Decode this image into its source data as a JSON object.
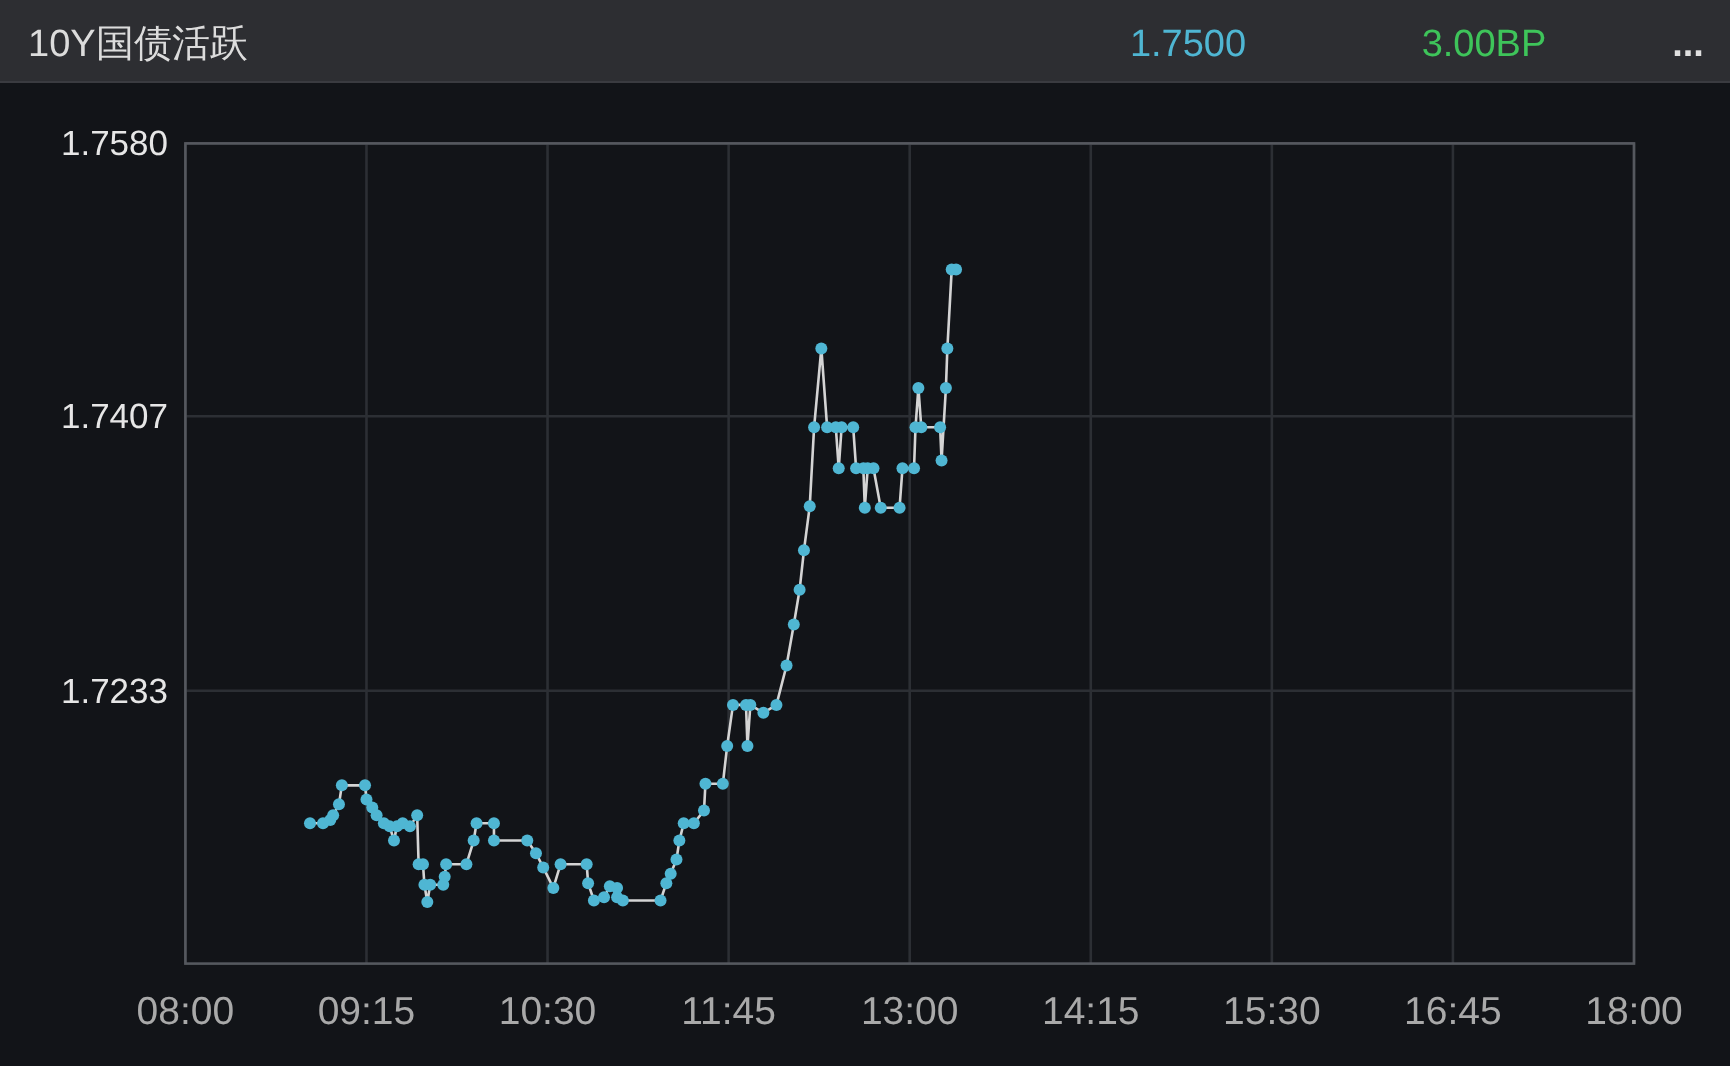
{
  "chart_data": {
    "type": "line",
    "title": "10Y国债活跃",
    "annotations": [
      "1.7500",
      "3.00BP",
      "..."
    ],
    "x": [
      8.86,
      8.95,
      9.0,
      9.02,
      9.06,
      9.08,
      9.24,
      9.25,
      9.29,
      9.32,
      9.37,
      9.41,
      9.44,
      9.46,
      9.5,
      9.55,
      9.6,
      9.61,
      9.64,
      9.65,
      9.67,
      9.69,
      9.78,
      9.79,
      9.8,
      9.94,
      9.99,
      10.01,
      10.13,
      10.13,
      10.36,
      10.42,
      10.47,
      10.54,
      10.59,
      10.77,
      10.78,
      10.82,
      10.89,
      10.93,
      10.98,
      10.98,
      11.02,
      11.28,
      11.32,
      11.35,
      11.39,
      11.41,
      11.44,
      11.51,
      11.58,
      11.59,
      11.71,
      11.74,
      11.78,
      11.87,
      11.88,
      11.9,
      11.99,
      12.08,
      12.15,
      12.2,
      12.24,
      12.27,
      12.31,
      12.34,
      12.39,
      12.43,
      12.49,
      12.51,
      12.53,
      12.61,
      12.63,
      12.68,
      12.69,
      12.71,
      12.75,
      12.8,
      12.93,
      12.95,
      13.03,
      13.04,
      13.06,
      13.08,
      13.21,
      13.22,
      13.25,
      13.26,
      13.29,
      13.32
    ],
    "series": [
      {
        "color": "#4fb6d3",
        "values": [
          1.7149,
          1.7149,
          1.7151,
          1.7154,
          1.7161,
          1.7173,
          1.7173,
          1.7164,
          1.7159,
          1.7154,
          1.7149,
          1.7147,
          1.7138,
          1.7147,
          1.7149,
          1.7147,
          1.7154,
          1.7123,
          1.7123,
          1.711,
          1.7099,
          1.711,
          1.711,
          1.7115,
          1.7123,
          1.7123,
          1.7138,
          1.7149,
          1.7149,
          1.7138,
          1.7138,
          1.713,
          1.7121,
          1.7108,
          1.7123,
          1.7123,
          1.7111,
          1.71,
          1.7102,
          1.7109,
          1.7108,
          1.7102,
          1.71,
          1.71,
          1.7111,
          1.7117,
          1.7126,
          1.7138,
          1.7149,
          1.7149,
          1.7157,
          1.7174,
          1.7174,
          1.7198,
          1.7224,
          1.7224,
          1.7198,
          1.7224,
          1.7219,
          1.7224,
          1.7249,
          1.7275,
          1.7297,
          1.7322,
          1.735,
          1.74,
          1.745,
          1.74,
          1.74,
          1.7374,
          1.74,
          1.74,
          1.7374,
          1.7374,
          1.7349,
          1.7374,
          1.7374,
          1.7349,
          1.7349,
          1.7374,
          1.7374,
          1.74,
          1.7425,
          1.74,
          1.74,
          1.7379,
          1.7425,
          1.745,
          1.75,
          1.75
        ]
      }
    ],
    "xlim": [
      8,
      18
    ],
    "xticks": [
      {
        "value": 8,
        "label": "08:00"
      },
      {
        "value": 9.25,
        "label": "09:15"
      },
      {
        "value": 10.5,
        "label": "10:30"
      },
      {
        "value": 11.75,
        "label": "11:45"
      },
      {
        "value": 13,
        "label": "13:00"
      },
      {
        "value": 14.25,
        "label": "14:15"
      },
      {
        "value": 15.5,
        "label": "15:30"
      },
      {
        "value": 16.75,
        "label": "16:45"
      },
      {
        "value": 18,
        "label": "18:00"
      }
    ],
    "ylim": [
      1.706,
      1.758
    ],
    "yticks": [
      {
        "value": 1.758,
        "label": "1.7580"
      },
      {
        "value": 1.7407,
        "label": "1.7407"
      },
      {
        "value": 1.7233,
        "label": "1.7233"
      }
    ],
    "grid": true,
    "marker": "circle",
    "line_style": "solid"
  }
}
